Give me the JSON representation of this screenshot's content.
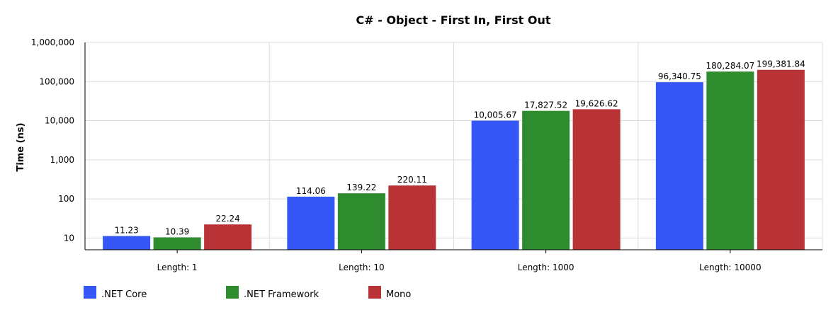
{
  "chart_data": {
    "type": "bar",
    "title": "C# - Object -  First In, First Out",
    "xlabel": "",
    "ylabel": "Time (ns)",
    "yscale": "log",
    "ylim": [
      5,
      1000000
    ],
    "yticks": [
      "10",
      "100",
      "1,000",
      "10,000",
      "100,000",
      "1,000,000"
    ],
    "ytick_values": [
      10,
      100,
      1000,
      10000,
      100000,
      1000000
    ],
    "categories": [
      "Length: 1",
      "Length: 10",
      "Length: 1000",
      "Length: 10000"
    ],
    "series": [
      {
        "name": ".NET Core",
        "color": "#3557f5",
        "values": [
          11.23,
          114.06,
          10005.67,
          96340.75
        ],
        "labels": [
          "11.23",
          "114.06",
          "10,005.67",
          "96,340.75"
        ]
      },
      {
        "name": ".NET Framework",
        "color": "#2e8b2e",
        "values": [
          10.39,
          139.22,
          17827.52,
          180284.07
        ],
        "labels": [
          "10.39",
          "139.22",
          "17,827.52",
          "180,284.07"
        ]
      },
      {
        "name": "Mono",
        "color": "#b83236",
        "values": [
          22.24,
          220.11,
          19626.62,
          199381.84
        ],
        "labels": [
          "22.24",
          "220.11",
          "19,626.62",
          "199,381.84"
        ]
      }
    ],
    "grid": true,
    "legend": "bottom-left"
  }
}
